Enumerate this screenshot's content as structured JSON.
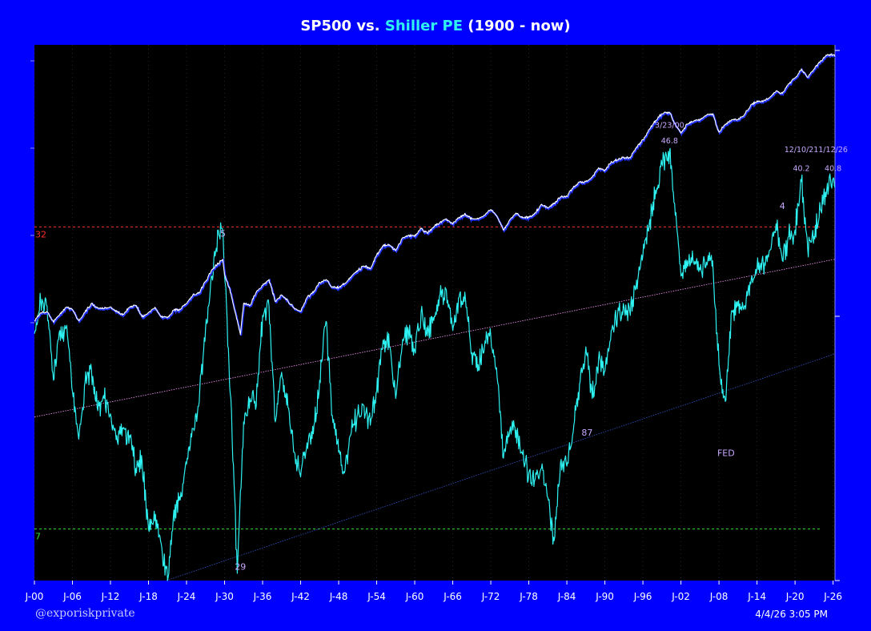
{
  "title": {
    "prefix": "SP500 vs. ",
    "highlight": "Shiller PE",
    "suffix": " (1900 - now)"
  },
  "footer": {
    "watermark": "@exporiskprivate",
    "timestamp": "4/4/26 3:05 PM"
  },
  "colors": {
    "background": "#0000ff",
    "plot": "#000000",
    "sp500": "#ffffff",
    "shiller_pe": "#2ef2f2",
    "upper_band": "#ff3030",
    "lower_band": "#33dd33",
    "annotation": "#c8a8ff",
    "trend": "#ff99ff",
    "trend2": "#3355cc"
  },
  "chart_data": {
    "type": "line",
    "title": "SP500 vs. Shiller PE (1900 - now)",
    "x_axis": {
      "ticks": [
        "J-00",
        "J-06",
        "J-12",
        "J-18",
        "J-24",
        "J-30",
        "J-36",
        "J-42",
        "J-48",
        "J-54",
        "J-60",
        "J-66",
        "J-72",
        "J-78",
        "J-84",
        "J-90",
        "J-96",
        "J-02",
        "J-08",
        "J-14",
        "J-20",
        "J-26"
      ],
      "range": [
        1900,
        2026.3
      ]
    },
    "y_axis_pe": {
      "scale": "log",
      "range": [
        5.4,
        80
      ]
    },
    "reference_lines": [
      {
        "label": "32",
        "value": 32,
        "style": "dashed",
        "color": "#ff3030"
      },
      {
        "label": "7",
        "value": 7,
        "style": "dashed",
        "color": "#33dd33"
      }
    ],
    "trend_lines": [
      {
        "name": "",
        "start": [
          1900,
          12.3
        ],
        "end": [
          2026.3,
          27.2
        ],
        "color": "#ff99ff"
      },
      {
        "name": "",
        "start": [
          1920.8,
          5.4
        ],
        "end": [
          2026.3,
          16.9
        ],
        "color": "#3355cc"
      }
    ],
    "annotations": [
      {
        "text": "5",
        "x": 1929.75,
        "y": 30.5
      },
      {
        "text": "29",
        "x": 1932.5,
        "y": 5.7
      },
      {
        "text": "87",
        "x": 1987.2,
        "y": 11.2
      },
      {
        "text": "3/23/00",
        "x": 2000.2,
        "y": 52.7
      },
      {
        "text": "46.8",
        "x": 2000.2,
        "y": 48.7
      },
      {
        "text": "FED",
        "x": 2009.1,
        "y": 10.1
      },
      {
        "text": "4",
        "x": 2018.0,
        "y": 35.0
      },
      {
        "text": "12/10/21",
        "x": 2021.0,
        "y": 46.6
      },
      {
        "text": "40.2",
        "x": 2021.0,
        "y": 42.4
      },
      {
        "text": "1/12/26",
        "x": 2026.0,
        "y": 46.6
      },
      {
        "text": "40.8",
        "x": 2026.0,
        "y": 42.4
      }
    ],
    "series": [
      {
        "name": "Shiller PE",
        "color": "#2ef2f2",
        "points": [
          [
            1900,
            18.7
          ],
          [
            1901,
            22
          ],
          [
            1902,
            21.5
          ],
          [
            1903,
            14.8
          ],
          [
            1904,
            19
          ],
          [
            1905,
            19.3
          ],
          [
            1906,
            14
          ],
          [
            1907,
            11
          ],
          [
            1908,
            14.7
          ],
          [
            1909,
            15.6
          ],
          [
            1910,
            12.7
          ],
          [
            1911,
            13.5
          ],
          [
            1912,
            12.5
          ],
          [
            1913,
            11.2
          ],
          [
            1914,
            11.6
          ],
          [
            1915,
            11.2
          ],
          [
            1916,
            9.5
          ],
          [
            1917,
            9.8
          ],
          [
            1918,
            7
          ],
          [
            1919,
            7.3
          ],
          [
            1920,
            6.5
          ],
          [
            1921,
            5.4
          ],
          [
            1922,
            7.7
          ],
          [
            1923,
            8.1
          ],
          [
            1924,
            9.7
          ],
          [
            1925,
            11.6
          ],
          [
            1926,
            13.3
          ],
          [
            1927,
            19.3
          ],
          [
            1928,
            25
          ],
          [
            1929,
            31.5
          ],
          [
            1929.75,
            31
          ],
          [
            1930,
            25
          ],
          [
            1931,
            13.5
          ],
          [
            1932,
            5.6
          ],
          [
            1933,
            12
          ],
          [
            1934,
            13.5
          ],
          [
            1935,
            13
          ],
          [
            1936,
            20.5
          ],
          [
            1937,
            21.5
          ],
          [
            1938,
            12
          ],
          [
            1939,
            15.4
          ],
          [
            1940,
            12.9
          ],
          [
            1941,
            10.3
          ],
          [
            1942,
            9.1
          ],
          [
            1943,
            10.8
          ],
          [
            1944,
            11.3
          ],
          [
            1945,
            14.8
          ],
          [
            1946,
            19.9
          ],
          [
            1947,
            12.4
          ],
          [
            1948,
            10.3
          ],
          [
            1949,
            9.4
          ],
          [
            1950,
            11.4
          ],
          [
            1951,
            12.5
          ],
          [
            1952,
            13
          ],
          [
            1953,
            11.8
          ],
          [
            1954,
            14
          ],
          [
            1955,
            18.1
          ],
          [
            1956,
            17.5
          ],
          [
            1957,
            13.5
          ],
          [
            1958,
            17.5
          ],
          [
            1959,
            19
          ],
          [
            1960,
            17.2
          ],
          [
            1961,
            20.8
          ],
          [
            1962,
            18.5
          ],
          [
            1963,
            20
          ],
          [
            1964,
            22.8
          ],
          [
            1965,
            23.3
          ],
          [
            1966,
            19
          ],
          [
            1967,
            22.5
          ],
          [
            1968,
            22.3
          ],
          [
            1969,
            17
          ],
          [
            1970,
            16
          ],
          [
            1971,
            17.5
          ],
          [
            1972,
            18.5
          ],
          [
            1973,
            15
          ],
          [
            1974,
            10
          ],
          [
            1975,
            11.5
          ],
          [
            1976,
            11.5
          ],
          [
            1977,
            10.2
          ],
          [
            1978,
            9.3
          ],
          [
            1979,
            9
          ],
          [
            1980,
            9.5
          ],
          [
            1981,
            8.2
          ],
          [
            1982,
            6.6
          ],
          [
            1983,
            9.8
          ],
          [
            1984,
            9.6
          ],
          [
            1985,
            11.4
          ],
          [
            1986,
            14.5
          ],
          [
            1987,
            17.5
          ],
          [
            1988,
            13.5
          ],
          [
            1989,
            16.5
          ],
          [
            1990,
            15.5
          ],
          [
            1991,
            19
          ],
          [
            1992,
            20.5
          ],
          [
            1993,
            21.5
          ],
          [
            1994,
            20.5
          ],
          [
            1995,
            24.5
          ],
          [
            1996,
            27.8
          ],
          [
            1997,
            32.5
          ],
          [
            1998,
            38.5
          ],
          [
            1999,
            44
          ],
          [
            2000.2,
            46.8
          ],
          [
            2001,
            36
          ],
          [
            2002,
            25
          ],
          [
            2003,
            27
          ],
          [
            2004,
            26.8
          ],
          [
            2005,
            25.8
          ],
          [
            2006,
            26.8
          ],
          [
            2007,
            27
          ],
          [
            2008,
            16
          ],
          [
            2009,
            13.3
          ],
          [
            2010,
            21
          ],
          [
            2011,
            21.5
          ],
          [
            2012,
            21.5
          ],
          [
            2013,
            24
          ],
          [
            2014,
            26
          ],
          [
            2015,
            26.5
          ],
          [
            2016,
            28.5
          ],
          [
            2017,
            32.5
          ],
          [
            2018,
            27
          ],
          [
            2019,
            30.5
          ],
          [
            2020,
            31.5
          ],
          [
            2021,
            40.2
          ],
          [
            2022,
            28.5
          ],
          [
            2023,
            30.5
          ],
          [
            2024,
            35
          ],
          [
            2025,
            38.5
          ],
          [
            2026,
            40.8
          ],
          [
            2026.3,
            39
          ]
        ]
      },
      {
        "name": "SP500",
        "color": "#ffffff",
        "points": [
          [
            1900,
            6.3
          ],
          [
            1901,
            7.8
          ],
          [
            1902,
            8
          ],
          [
            1903,
            6.1
          ],
          [
            1904,
            7.5
          ],
          [
            1905,
            9
          ],
          [
            1906,
            8.5
          ],
          [
            1907,
            6.3
          ],
          [
            1908,
            8
          ],
          [
            1909,
            10
          ],
          [
            1910,
            8.8
          ],
          [
            1911,
            8.7
          ],
          [
            1912,
            9.1
          ],
          [
            1913,
            8
          ],
          [
            1914,
            7.5
          ],
          [
            1915,
            9
          ],
          [
            1916,
            9.5
          ],
          [
            1917,
            7
          ],
          [
            1918,
            7.8
          ],
          [
            1919,
            9
          ],
          [
            1920,
            7
          ],
          [
            1921,
            6.9
          ],
          [
            1922,
            8.4
          ],
          [
            1923,
            8.5
          ],
          [
            1924,
            10
          ],
          [
            1925,
            12.5
          ],
          [
            1926,
            13.3
          ],
          [
            1927,
            17.7
          ],
          [
            1928,
            24.3
          ],
          [
            1929.7,
            31.9
          ],
          [
            1930,
            21.5
          ],
          [
            1931,
            13
          ],
          [
            1932.5,
            4.4
          ],
          [
            1933,
            10
          ],
          [
            1934,
            9.5
          ],
          [
            1935,
            13.4
          ],
          [
            1936,
            16
          ],
          [
            1937,
            18.7
          ],
          [
            1938,
            10.5
          ],
          [
            1939,
            12.5
          ],
          [
            1940,
            10.6
          ],
          [
            1941,
            8.7
          ],
          [
            1942,
            8.1
          ],
          [
            1943,
            11.7
          ],
          [
            1944,
            13.3
          ],
          [
            1945,
            17.4
          ],
          [
            1946,
            18.7
          ],
          [
            1947,
            15.3
          ],
          [
            1948,
            15.2
          ],
          [
            1949,
            16.8
          ],
          [
            1950,
            20.4
          ],
          [
            1951,
            23.8
          ],
          [
            1952,
            26.6
          ],
          [
            1953,
            24.8
          ],
          [
            1954,
            35.9
          ],
          [
            1955,
            45.5
          ],
          [
            1956,
            46.7
          ],
          [
            1957,
            40
          ],
          [
            1958,
            55.2
          ],
          [
            1959,
            59.9
          ],
          [
            1960,
            58.1
          ],
          [
            1961,
            71.6
          ],
          [
            1962,
            63.1
          ],
          [
            1963,
            75
          ],
          [
            1964,
            84.8
          ],
          [
            1965,
            92.4
          ],
          [
            1966,
            80.3
          ],
          [
            1967,
            96.5
          ],
          [
            1968,
            103.9
          ],
          [
            1969,
            92
          ],
          [
            1970,
            92
          ],
          [
            1971,
            102
          ],
          [
            1972,
            118
          ],
          [
            1973,
            97.6
          ],
          [
            1974,
            68.6
          ],
          [
            1975,
            90.2
          ],
          [
            1976,
            107.5
          ],
          [
            1977,
            95.1
          ],
          [
            1978,
            96.1
          ],
          [
            1979,
            107.9
          ],
          [
            1980,
            135.8
          ],
          [
            1981,
            122.6
          ],
          [
            1982,
            140.6
          ],
          [
            1983,
            164.9
          ],
          [
            1984,
            167.2
          ],
          [
            1985,
            211.3
          ],
          [
            1986,
            242.2
          ],
          [
            1987,
            247.1
          ],
          [
            1988,
            277.7
          ],
          [
            1989,
            353.4
          ],
          [
            1990,
            330.2
          ],
          [
            1991,
            417.1
          ],
          [
            1992,
            435.7
          ],
          [
            1993,
            466.5
          ],
          [
            1994,
            459.3
          ],
          [
            1995,
            615.9
          ],
          [
            1996,
            740.7
          ],
          [
            1997,
            970.4
          ],
          [
            1998,
            1229
          ],
          [
            1999,
            1469
          ],
          [
            2000.2,
            1527
          ],
          [
            2001,
            1148
          ],
          [
            2002,
            880
          ],
          [
            2003,
            1112
          ],
          [
            2004,
            1212
          ],
          [
            2005,
            1248
          ],
          [
            2006,
            1418
          ],
          [
            2007,
            1468
          ],
          [
            2008,
            903
          ],
          [
            2009,
            1115
          ],
          [
            2010,
            1258
          ],
          [
            2011,
            1258
          ],
          [
            2012,
            1426
          ],
          [
            2013,
            1848
          ],
          [
            2014,
            2059
          ],
          [
            2015,
            2044
          ],
          [
            2016,
            2239
          ],
          [
            2017,
            2674
          ],
          [
            2018,
            2507
          ],
          [
            2019,
            3231
          ],
          [
            2020,
            3756
          ],
          [
            2021,
            4766
          ],
          [
            2022,
            3840
          ],
          [
            2023,
            4770
          ],
          [
            2024,
            5882
          ],
          [
            2025,
            6800
          ],
          [
            2026,
            6950
          ],
          [
            2026.3,
            6600
          ]
        ]
      }
    ]
  }
}
